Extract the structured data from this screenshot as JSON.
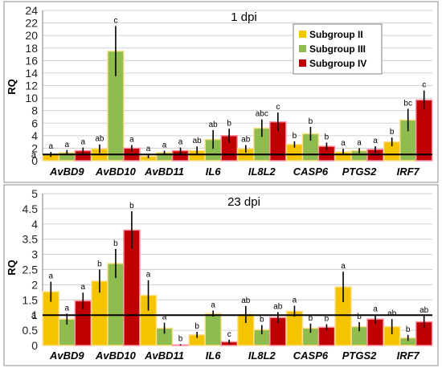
{
  "chart_data": [
    {
      "type": "bar",
      "title": "1 dpi",
      "ylabel": "RQ",
      "xlabel": "",
      "ylim": [
        0,
        24
      ],
      "yticks": [
        0,
        2,
        4,
        6,
        8,
        10,
        12,
        14,
        16,
        18,
        20,
        22,
        24
      ],
      "grid": true,
      "reference_line": 1,
      "reference_label": "a",
      "legend_position": "top-right",
      "categories": [
        "AvBD9",
        "AvBD10",
        "AvBD11",
        "IL6",
        "IL8L2",
        "CASP6",
        "PTGS2",
        "IRF7"
      ],
      "series": [
        {
          "name": "Subgroup II",
          "color": "#f5c400",
          "values": [
            1.0,
            1.9,
            0.7,
            1.6,
            1.9,
            2.6,
            1.4,
            3.0
          ],
          "errors": [
            0.4,
            0.7,
            0.3,
            0.7,
            0.6,
            0.5,
            0.5,
            0.7
          ],
          "labels": [
            "a",
            "ab",
            "a",
            "ab",
            "ab",
            "b",
            "a",
            "b"
          ]
        },
        {
          "name": "Subgroup III",
          "color": "#8fbc4f",
          "values": [
            1.3,
            17.5,
            1.3,
            3.4,
            5.2,
            4.3,
            1.6,
            6.5
          ],
          "errors": [
            0.4,
            4.0,
            0.3,
            1.5,
            1.4,
            1.1,
            0.4,
            1.8
          ],
          "labels": [
            "a",
            "c",
            "a",
            "ab",
            "abc",
            "b",
            "a",
            "bc"
          ]
        },
        {
          "name": "Subgroup IV",
          "color": "#c00000",
          "values": [
            1.6,
            2.0,
            1.6,
            4.0,
            6.2,
            2.3,
            1.8,
            9.7
          ],
          "errors": [
            0.5,
            0.5,
            0.5,
            1.1,
            1.5,
            0.6,
            0.5,
            1.5
          ],
          "labels": [
            "a",
            "a",
            "a",
            "b",
            "c",
            "b",
            "a",
            "c"
          ]
        }
      ]
    },
    {
      "type": "bar",
      "title": "23 dpi",
      "ylabel": "RQ",
      "xlabel": "",
      "ylim": [
        0,
        5
      ],
      "yticks": [
        "0",
        "0.5",
        "1",
        "1.5",
        "2",
        "2.5",
        "3",
        "3.5",
        "4",
        "4.5",
        "5"
      ],
      "grid": true,
      "reference_line": 1,
      "reference_label": "a",
      "categories": [
        "AvBD9",
        "AvBD10",
        "AvBD11",
        "IL6",
        "IL8L2",
        "CASP6",
        "PTGS2",
        "IRF7"
      ],
      "series": [
        {
          "name": "Subgroup II",
          "color": "#f5c400",
          "values": [
            1.77,
            2.12,
            1.65,
            0.35,
            1.02,
            1.13,
            1.93,
            0.62
          ],
          "errors": [
            0.33,
            0.38,
            0.5,
            0.1,
            0.28,
            0.18,
            0.5,
            0.25
          ],
          "labels": [
            "a",
            "b",
            "a",
            "b",
            "ab",
            "a",
            "a",
            "ab"
          ]
        },
        {
          "name": "Subgroup III",
          "color": "#8fbc4f",
          "values": [
            0.87,
            2.7,
            0.57,
            1.05,
            0.52,
            0.57,
            0.62,
            0.25
          ],
          "errors": [
            0.18,
            0.48,
            0.18,
            0.1,
            0.15,
            0.15,
            0.15,
            0.1
          ],
          "labels": [
            "a",
            "b",
            "a",
            "a",
            "b",
            "b",
            "b",
            "b"
          ]
        },
        {
          "name": "Subgroup IV",
          "color": "#c00000",
          "values": [
            1.47,
            3.8,
            0.02,
            0.12,
            0.92,
            0.6,
            0.87,
            0.78
          ],
          "errors": [
            0.27,
            0.62,
            0.02,
            0.07,
            0.18,
            0.1,
            0.15,
            0.2
          ],
          "labels": [
            "a",
            "b",
            "b",
            "c",
            "ab",
            "b",
            "a",
            "ab"
          ]
        }
      ]
    }
  ]
}
